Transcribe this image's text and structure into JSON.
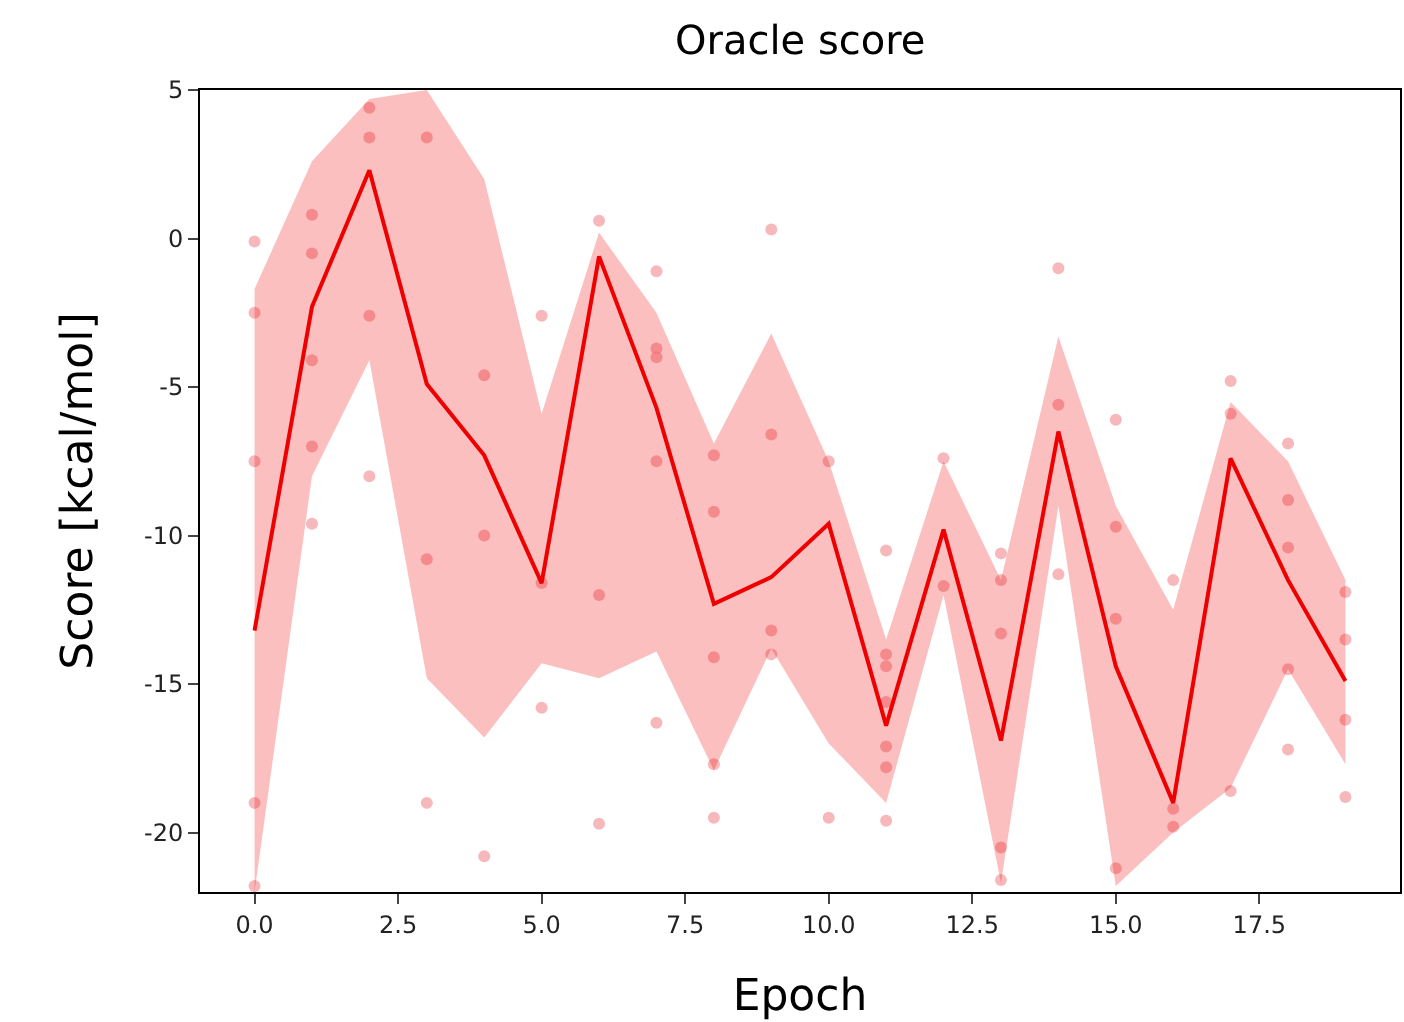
{
  "chart_data": {
    "type": "line",
    "title": "Oracle score",
    "xlabel": "Epoch",
    "ylabel": "Score [kcal/mol]",
    "xlim": [
      -0.95,
      19.95
    ],
    "ylim": [
      -22,
      5
    ],
    "xticks": [
      {
        "value": 0,
        "label": "0.0"
      },
      {
        "value": 2.5,
        "label": "2.5"
      },
      {
        "value": 5,
        "label": "5.0"
      },
      {
        "value": 7.5,
        "label": "7.5"
      },
      {
        "value": 10,
        "label": "10.0"
      },
      {
        "value": 12.5,
        "label": "12.5"
      },
      {
        "value": 15,
        "label": "15.0"
      },
      {
        "value": 17.5,
        "label": "17.5"
      }
    ],
    "yticks": [
      -20,
      -15,
      -10,
      -5,
      0,
      5
    ],
    "grid": false,
    "series": [
      {
        "type": "scatter",
        "marker": "circle",
        "color": "#f4a0a4",
        "x": [
          0,
          0,
          0,
          0,
          0,
          1,
          1,
          1,
          1,
          1,
          2,
          2,
          2,
          2,
          3,
          3,
          3,
          4,
          4,
          4,
          5,
          5,
          5,
          6,
          6,
          6,
          7,
          7,
          7,
          7,
          7,
          8,
          8,
          8,
          8,
          8,
          9,
          9,
          9,
          9,
          10,
          10,
          11,
          11,
          11,
          11,
          11,
          11,
          11,
          12,
          12,
          13,
          13,
          13,
          13,
          13,
          14,
          14,
          14,
          15,
          15,
          15,
          15,
          16,
          16,
          16,
          17,
          17,
          17,
          18,
          18,
          18,
          18,
          18,
          19,
          19,
          19,
          19
        ],
        "values": [
          -0.1,
          -2.5,
          -7.5,
          -19,
          -21.8,
          0.8,
          -0.5,
          -4.1,
          -7,
          -9.6,
          4.4,
          3.4,
          -2.6,
          -8,
          3.4,
          -10.8,
          -19,
          -4.6,
          -10,
          -20.8,
          -2.6,
          -11.6,
          -15.8,
          0.6,
          -12,
          -19.7,
          -1.1,
          -3.7,
          -4,
          -7.5,
          -16.3,
          -7.3,
          -9.2,
          -14.1,
          -17.7,
          -19.5,
          0.3,
          -6.6,
          -13.2,
          -14,
          -7.5,
          -19.5,
          -10.5,
          -14,
          -14.4,
          -15.6,
          -17.1,
          -17.8,
          -19.6,
          -7.4,
          -11.7,
          -10.6,
          -11.5,
          -13.3,
          -20.5,
          -21.6,
          -1,
          -5.6,
          -11.3,
          -6.1,
          -9.7,
          -12.8,
          -21.2,
          -11.5,
          -19.2,
          -19.8,
          -4.8,
          -5.9,
          -18.6,
          -6.9,
          -8.8,
          -10.4,
          -14.5,
          -17.2,
          -11.9,
          -13.5,
          -16.2,
          -18.8
        ]
      },
      {
        "marker": "none",
        "line_style": "solid",
        "color": "#ee0000",
        "x": [
          0,
          1,
          2,
          3,
          4,
          5,
          6,
          7,
          8,
          9,
          10,
          11,
          12,
          13,
          14,
          15,
          16,
          17,
          18,
          19
        ],
        "values": [
          -13.2,
          -2.3,
          2.3,
          -4.9,
          -7.3,
          -11.6,
          -0.6,
          -5.7,
          -12.3,
          -11.4,
          -9.6,
          -16.4,
          -9.8,
          -16.9,
          -6.5,
          -14.4,
          -19,
          -7.4,
          -11.5,
          -14.9
        ],
        "upper": [
          -1.7,
          2.6,
          4.7,
          5,
          2,
          -5.9,
          0.2,
          -2.5,
          -6.9,
          -3.2,
          -7.5,
          -13.5,
          -7.5,
          -11.5,
          -3.3,
          -9,
          -12.5,
          -5.5,
          -7.5,
          -11.5
        ],
        "lower": [
          -22,
          -8,
          -4.1,
          -14.8,
          -16.8,
          -14.3,
          -14.8,
          -13.9,
          -17.9,
          -13.8,
          -17,
          -19,
          -12,
          -21.7,
          -9,
          -21.8,
          -20,
          -18.5,
          -14.5,
          -17.7
        ]
      }
    ]
  }
}
